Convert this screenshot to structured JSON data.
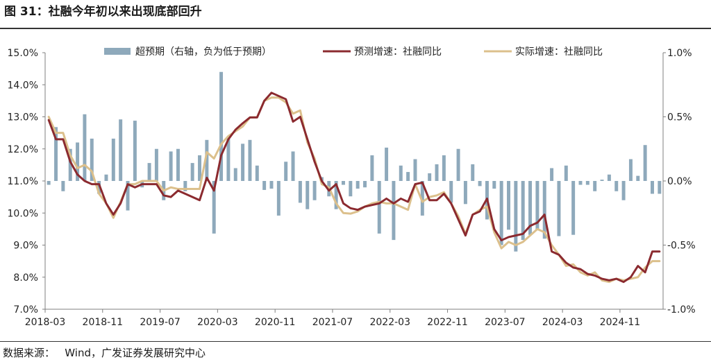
{
  "figure": {
    "title": "图 31：社融今年初以来出现底部回升",
    "source": "数据来源：   Wind，广发证券发展研究中心"
  },
  "colors": {
    "bar": "#8ea9bb",
    "forecast": "#8b2a2f",
    "actual": "#dcc08c",
    "axis": "#7f7f7f"
  },
  "chart_data": {
    "type": "line",
    "x_tick_labels": [
      "2018-03",
      "2018-11",
      "2019-07",
      "2020-03",
      "2020-11",
      "2021-07",
      "2022-03",
      "2022-11",
      "2023-07",
      "2024-03",
      "2024-11"
    ],
    "left_axis": {
      "ylim": [
        7.0,
        15.0
      ],
      "tick_labels": [
        "15.0%",
        "14.0%",
        "13.0%",
        "12.0%",
        "11.0%",
        "10.0%",
        "9.0%",
        "8.0%",
        "7.0%"
      ]
    },
    "right_axis": {
      "ylim": [
        -1.0,
        1.0
      ],
      "tick_labels": [
        "1.0%",
        "0.5%",
        "0.0%",
        "-0.5%",
        "-1.0%"
      ]
    },
    "legend": {
      "placement": "top"
    },
    "categories": [
      "2018-03",
      "2018-04",
      "2018-05",
      "2018-06",
      "2018-07",
      "2018-08",
      "2018-09",
      "2018-10",
      "2018-11",
      "2018-12",
      "2019-01",
      "2019-02",
      "2019-03",
      "2019-04",
      "2019-05",
      "2019-06",
      "2019-07",
      "2019-08",
      "2019-09",
      "2019-10",
      "2019-11",
      "2019-12",
      "2020-01",
      "2020-02",
      "2020-03",
      "2020-04",
      "2020-05",
      "2020-06",
      "2020-07",
      "2020-08",
      "2020-09",
      "2020-10",
      "2020-11",
      "2020-12",
      "2021-01",
      "2021-02",
      "2021-03",
      "2021-04",
      "2021-05",
      "2021-06",
      "2021-07",
      "2021-08",
      "2021-09",
      "2021-10",
      "2021-11",
      "2021-12",
      "2022-01",
      "2022-02",
      "2022-03",
      "2022-04",
      "2022-05",
      "2022-06",
      "2022-07",
      "2022-08",
      "2022-09",
      "2022-10",
      "2022-11",
      "2022-12",
      "2023-01",
      "2023-02",
      "2023-03",
      "2023-04",
      "2023-05",
      "2023-06",
      "2023-07",
      "2023-08",
      "2023-09",
      "2023-10",
      "2023-11",
      "2023-12",
      "2024-01",
      "2024-02",
      "2024-03",
      "2024-04",
      "2024-05",
      "2024-06",
      "2024-07",
      "2024-08",
      "2024-09",
      "2024-10",
      "2024-11",
      "2024-12",
      "2025-01",
      "2025-02",
      "2025-03",
      "2025-04"
    ],
    "series": [
      {
        "name": "超预期（右轴，负为低于预期）",
        "type": "bar",
        "axis": "right",
        "values": [
          -0.03,
          0.42,
          -0.08,
          0.25,
          0.3,
          0.52,
          0.33,
          -0.1,
          0.05,
          0.33,
          0.48,
          -0.23,
          0.47,
          -0.05,
          0.14,
          0.25,
          -0.15,
          0.23,
          0.25,
          -0.08,
          0.14,
          0.2,
          0.32,
          -0.41,
          0.85,
          0.34,
          0.1,
          0.29,
          0.32,
          0.12,
          -0.07,
          -0.06,
          -0.27,
          0.15,
          0.23,
          -0.17,
          -0.22,
          -0.15,
          0.03,
          -0.12,
          -0.22,
          -0.03,
          -0.12,
          -0.06,
          -0.05,
          0.2,
          -0.41,
          0.26,
          -0.46,
          0.12,
          0.07,
          0.17,
          -0.27,
          0.06,
          0.13,
          0.2,
          -0.17,
          0.25,
          -0.18,
          0.13,
          -0.04,
          -0.3,
          -0.06,
          -0.5,
          -0.38,
          -0.55,
          -0.46,
          -0.42,
          -0.38,
          -0.45,
          0.1,
          -0.43,
          0.12,
          -0.42,
          -0.03,
          -0.03,
          -0.08,
          0.01,
          0.05,
          -0.08,
          -0.15,
          0.17,
          0.04,
          0.28,
          -0.1,
          -0.1
        ]
      },
      {
        "name": "预测增速：社融同比",
        "type": "line",
        "axis": "left",
        "values": [
          12.9,
          12.3,
          12.3,
          11.6,
          11.2,
          11.0,
          10.9,
          10.9,
          10.3,
          9.95,
          10.3,
          10.9,
          10.8,
          10.9,
          10.9,
          10.9,
          10.55,
          10.5,
          10.7,
          10.6,
          10.5,
          10.4,
          11.1,
          10.7,
          11.8,
          12.3,
          12.6,
          12.8,
          12.98,
          12.98,
          13.5,
          13.75,
          13.65,
          13.55,
          12.85,
          13.0,
          12.3,
          11.6,
          11.0,
          10.7,
          10.9,
          10.3,
          10.15,
          10.1,
          10.2,
          10.25,
          10.3,
          10.45,
          10.3,
          10.45,
          10.35,
          10.9,
          10.95,
          10.4,
          10.4,
          10.6,
          10.3,
          9.8,
          9.3,
          9.95,
          10.05,
          10.45,
          9.5,
          9.15,
          9.25,
          9.3,
          9.35,
          9.6,
          9.7,
          9.95,
          8.8,
          8.7,
          8.45,
          8.3,
          8.25,
          8.1,
          8.05,
          7.95,
          7.9,
          7.95,
          7.85,
          8.0,
          8.35,
          8.15,
          8.8,
          8.8
        ]
      },
      {
        "name": "实际增速：社融同比",
        "type": "line",
        "axis": "left",
        "values": [
          13.0,
          12.5,
          12.5,
          11.8,
          11.4,
          11.5,
          11.3,
          10.6,
          10.3,
          9.85,
          10.35,
          10.9,
          10.9,
          11.0,
          11.0,
          11.0,
          10.7,
          10.8,
          10.75,
          10.75,
          10.75,
          10.75,
          11.9,
          11.7,
          12.15,
          12.4,
          12.55,
          12.7,
          12.98,
          12.99,
          13.5,
          13.6,
          13.6,
          13.45,
          13.1,
          13.2,
          12.2,
          11.7,
          10.9,
          10.8,
          10.3,
          10.0,
          9.98,
          10.05,
          10.2,
          10.3,
          10.35,
          10.3,
          10.3,
          10.2,
          10.1,
          10.9,
          10.35,
          10.5,
          10.55,
          10.65,
          10.3,
          9.9,
          9.35,
          9.95,
          10.1,
          10.2,
          9.4,
          8.9,
          9.1,
          9.0,
          9.1,
          9.3,
          9.5,
          9.4,
          9.0,
          8.7,
          8.35,
          8.4,
          8.15,
          8.05,
          8.15,
          7.9,
          7.85,
          7.95,
          7.9,
          7.95,
          8.0,
          8.3,
          8.5,
          8.5
        ]
      }
    ]
  }
}
